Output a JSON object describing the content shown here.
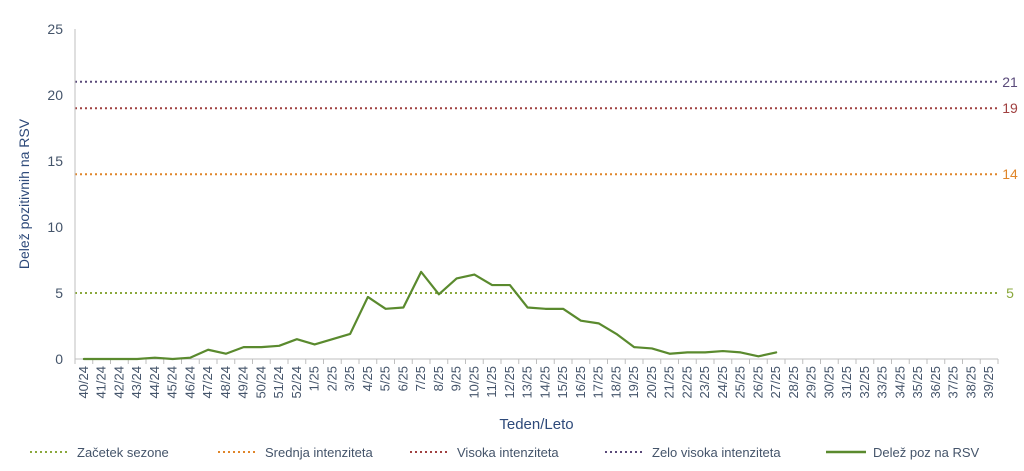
{
  "chart_data": {
    "type": "line",
    "xlabel": "Teden/Leto",
    "ylabel": "Delež pozitivnih na RSV",
    "ylim": [
      0,
      25
    ],
    "yticks": [
      "0",
      "5",
      "10",
      "15",
      "20",
      "25"
    ],
    "grid": false,
    "legend_position": "bottom",
    "categories": [
      "40/24",
      "41/24",
      "42/24",
      "43/24",
      "44/24",
      "45/24",
      "46/24",
      "47/24",
      "48/24",
      "49/24",
      "50/24",
      "51/24",
      "52/24",
      "1/25",
      "2/25",
      "3/25",
      "4/25",
      "5/25",
      "6/25",
      "7/25",
      "8/25",
      "9/25",
      "10/25",
      "11/25",
      "12/25",
      "13/25",
      "14/25",
      "15/25",
      "16/25",
      "17/25",
      "18/25",
      "19/25",
      "20/25",
      "21/25",
      "22/25",
      "23/25",
      "24/25",
      "25/25",
      "26/25",
      "27/25",
      "28/25",
      "29/25",
      "30/25",
      "31/25",
      "32/25",
      "33/25",
      "34/25",
      "35/25",
      "36/25",
      "37/25",
      "38/25",
      "39/25"
    ],
    "thresholds": [
      {
        "name": "Začetek sezone",
        "value": 5,
        "label": "5",
        "color": "#8aa83c"
      },
      {
        "name": "Srednja intenziteta",
        "value": 14,
        "label": "14",
        "color": "#e0862a"
      },
      {
        "name": "Visoka intenziteta",
        "value": 19,
        "label": "19",
        "color": "#a04040"
      },
      {
        "name": "Zelo visoka intenziteta",
        "value": 21,
        "label": "21",
        "color": "#5a4a7a"
      }
    ],
    "series": [
      {
        "name": "Delež poz na RSV",
        "color": "#5a8a2e",
        "values": [
          0.0,
          0.0,
          0.0,
          0.0,
          0.1,
          0.0,
          0.1,
          0.7,
          0.4,
          0.9,
          0.9,
          1.0,
          1.5,
          1.1,
          1.5,
          1.9,
          4.7,
          3.8,
          3.9,
          6.6,
          4.9,
          6.1,
          6.4,
          5.6,
          5.6,
          3.9,
          3.8,
          3.8,
          2.9,
          2.7,
          1.9,
          0.9,
          0.8,
          0.4,
          0.5,
          0.5,
          0.6,
          0.5,
          0.2,
          0.5,
          null,
          null,
          null,
          null,
          null,
          null,
          null,
          null,
          null,
          null,
          null,
          null
        ]
      }
    ],
    "colors": {
      "axis_text": "#44546a",
      "axis_line": "#bfbfbf",
      "title_text": "#2e4a7a"
    }
  }
}
